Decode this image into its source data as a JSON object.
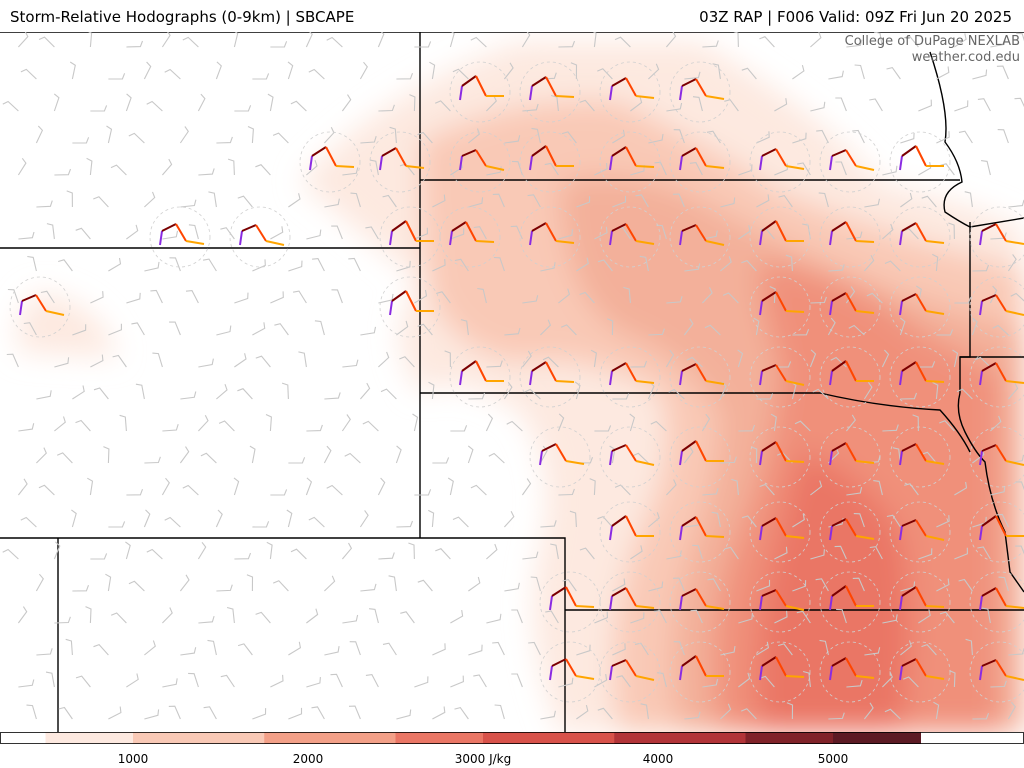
{
  "header": {
    "title_left": "Storm-Relative Hodographs (0-9km) | SBCAPE",
    "title_right": "03Z RAP | F006 Valid: 09Z Fri Jun 20 2025"
  },
  "credit": {
    "line1": "College of DuPage NEXLAB",
    "line2": "weather.cod.edu"
  },
  "colorbar": {
    "unit": "J/kg",
    "range": [
      0,
      5500
    ],
    "ticks": [
      {
        "value": 1000,
        "label": "1000"
      },
      {
        "value": 2000,
        "label": "2000"
      },
      {
        "value": 3000,
        "label": "3000 J/kg"
      },
      {
        "value": 4000,
        "label": "4000"
      },
      {
        "value": 5000,
        "label": "5000"
      }
    ],
    "colors": [
      "#ffffff",
      "#fde9e0",
      "#f9c9b6",
      "#f3a088",
      "#ea7665",
      "#d8524a",
      "#b23438",
      "#802229",
      "#5c1a24"
    ]
  },
  "hodograph_colors": [
    "#8a2be2",
    "#7a0000",
    "#ff4500",
    "#ffa500"
  ]
}
